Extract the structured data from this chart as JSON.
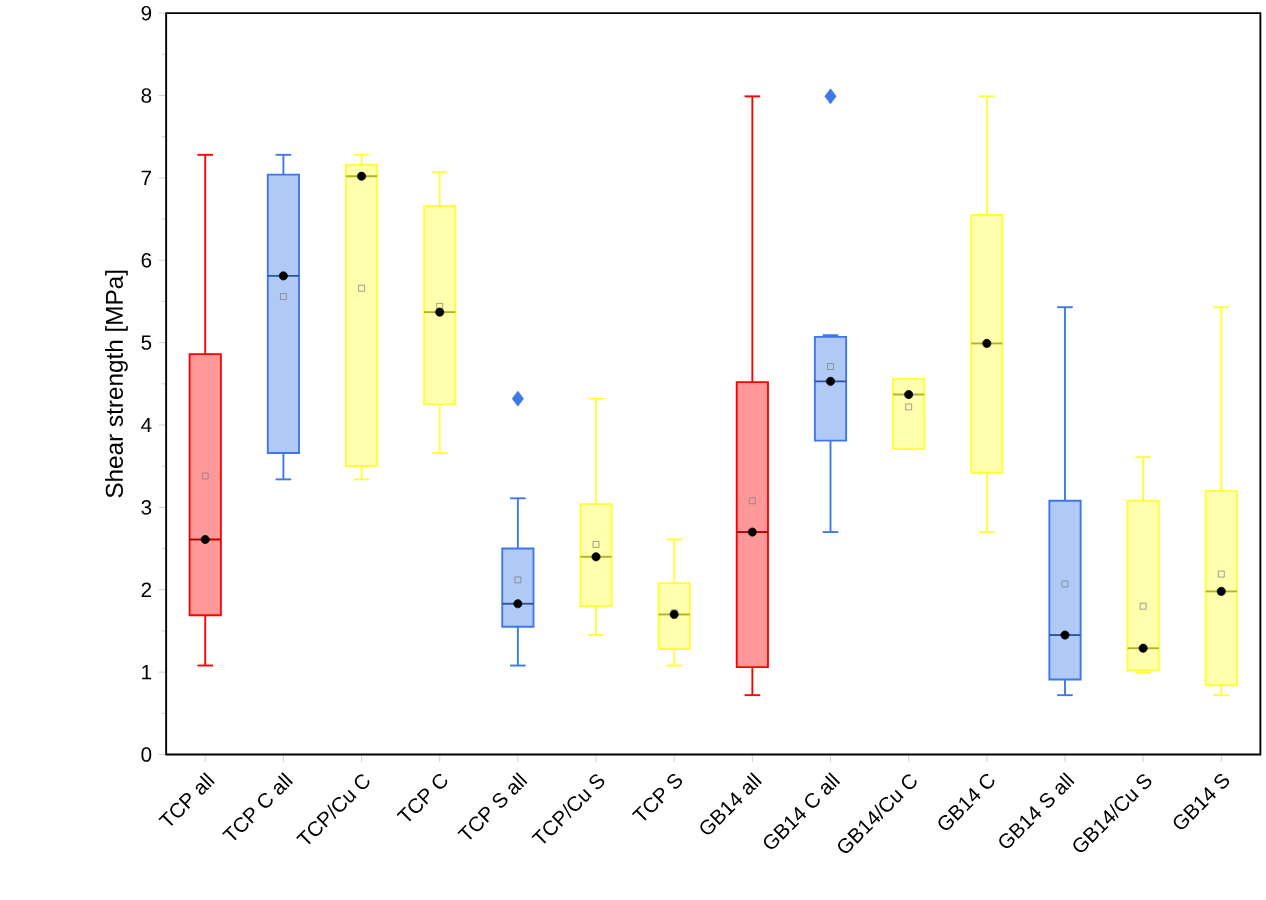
{
  "chart_data": {
    "type": "box",
    "ylabel": "Shear strength [MPa]",
    "categories": [
      "TCP all",
      "TCP C all",
      "TCP/Cu C",
      "TCP C",
      "TCP S all",
      "TCP/Cu S",
      "TCP S",
      "GB14 all",
      "GB14 C all",
      "GB14/Cu C",
      "GB14 C",
      "GB14 S all",
      "GB14/Cu S",
      "GB14 S"
    ],
    "colors": [
      "#ff0000",
      "#3d78e6",
      "#ffff33",
      "#ffff33",
      "#3d78e6",
      "#ffff33",
      "#ffff33",
      "#ff0000",
      "#3d78e6",
      "#ffff33",
      "#ffff33",
      "#3d78e6",
      "#ffff33",
      "#ffff33"
    ],
    "boxes": [
      {
        "low": 1.08,
        "q1": 1.69,
        "median": 2.61,
        "q3": 4.86,
        "high": 7.28,
        "mean": 3.38
      },
      {
        "low": 3.34,
        "q1": 3.66,
        "median": 5.81,
        "q3": 7.04,
        "high": 7.28,
        "mean": 5.56
      },
      {
        "low": 3.34,
        "q1": 3.5,
        "median": 7.02,
        "q3": 7.16,
        "high": 7.28,
        "mean": 5.66
      },
      {
        "low": 3.66,
        "q1": 4.25,
        "median": 5.37,
        "q3": 6.66,
        "high": 7.07,
        "mean": 5.44
      },
      {
        "low": 1.08,
        "q1": 1.55,
        "median": 1.83,
        "q3": 2.5,
        "high": 3.11,
        "mean": 2.12,
        "outliers": [
          4.32
        ]
      },
      {
        "low": 1.45,
        "q1": 1.8,
        "median": 2.4,
        "q3": 3.04,
        "high": 4.32,
        "mean": 2.55
      },
      {
        "low": 1.08,
        "q1": 1.28,
        "median": 1.7,
        "q3": 2.08,
        "high": 2.61,
        "mean": 1.72
      },
      {
        "low": 0.72,
        "q1": 1.06,
        "median": 2.7,
        "q3": 4.52,
        "high": 7.99,
        "mean": 3.08
      },
      {
        "low": 2.7,
        "q1": 3.81,
        "median": 4.53,
        "q3": 5.07,
        "high": 5.09,
        "mean": 4.71,
        "outliers": [
          7.99
        ]
      },
      {
        "low": 3.71,
        "q1": 3.71,
        "median": 4.37,
        "q3": 4.56,
        "high": 4.56,
        "mean": 4.22
      },
      {
        "low": 2.7,
        "q1": 3.42,
        "median": 4.99,
        "q3": 6.55,
        "high": 7.99
      },
      {
        "low": 0.72,
        "q1": 0.91,
        "median": 1.45,
        "q3": 3.08,
        "high": 5.43,
        "mean": 2.07
      },
      {
        "low": 0.99,
        "q1": 1.02,
        "median": 1.29,
        "q3": 3.08,
        "high": 3.61,
        "mean": 1.8
      },
      {
        "low": 0.72,
        "q1": 0.84,
        "median": 1.98,
        "q3": 3.2,
        "high": 5.43,
        "mean": 2.19
      }
    ],
    "series": [
      {
        "type": "scatter",
        "color": "#000000",
        "marker": "circle",
        "x": [
          "TCP all",
          "TCP C all",
          "TCP/Cu C",
          "TCP C",
          "TCP S all",
          "TCP/Cu S",
          "TCP S",
          "GB14 all",
          "GB14 C all",
          "GB14/Cu C",
          "GB14 C",
          "GB14 S all",
          "GB14/Cu S",
          "GB14 S"
        ],
        "values": [
          2.61,
          5.81,
          7.02,
          5.37,
          1.83,
          2.4,
          1.7,
          2.7,
          4.53,
          4.37,
          4.99,
          1.45,
          1.29,
          1.98
        ]
      }
    ],
    "ylim": [
      0,
      9
    ],
    "yticks": [
      0,
      1,
      2,
      3,
      4,
      5,
      6,
      7,
      8,
      9
    ]
  }
}
